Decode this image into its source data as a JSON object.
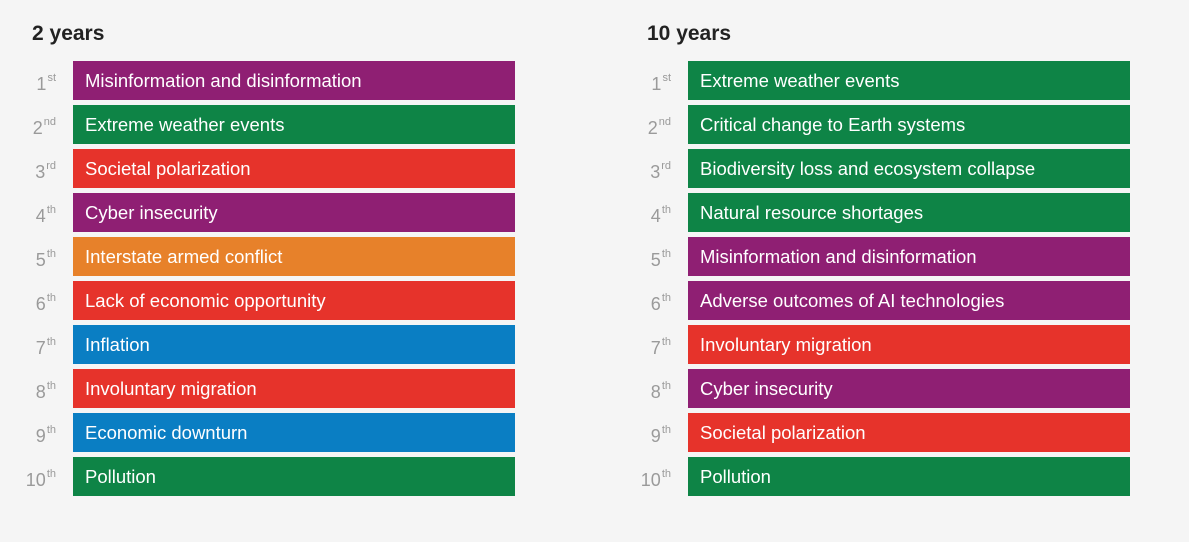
{
  "panels": [
    {
      "title": "2 years",
      "items": [
        {
          "rank": 1,
          "suffix": "st",
          "label": "Misinformation and disinformation",
          "color": "#8f1f73"
        },
        {
          "rank": 2,
          "suffix": "nd",
          "label": "Extreme weather events",
          "color": "#0e8446"
        },
        {
          "rank": 3,
          "suffix": "rd",
          "label": "Societal polarization",
          "color": "#e6332b"
        },
        {
          "rank": 4,
          "suffix": "th",
          "label": "Cyber insecurity",
          "color": "#8f1f73"
        },
        {
          "rank": 5,
          "suffix": "th",
          "label": "Interstate armed conflict",
          "color": "#e7812a"
        },
        {
          "rank": 6,
          "suffix": "th",
          "label": "Lack of economic opportunity",
          "color": "#e6332b"
        },
        {
          "rank": 7,
          "suffix": "th",
          "label": "Inflation",
          "color": "#0a7ec3"
        },
        {
          "rank": 8,
          "suffix": "th",
          "label": "Involuntary migration",
          "color": "#e6332b"
        },
        {
          "rank": 9,
          "suffix": "th",
          "label": "Economic downturn",
          "color": "#0a7ec3"
        },
        {
          "rank": 10,
          "suffix": "th",
          "label": "Pollution",
          "color": "#0e8446"
        }
      ]
    },
    {
      "title": "10 years",
      "items": [
        {
          "rank": 1,
          "suffix": "st",
          "label": "Extreme weather events",
          "color": "#0e8446"
        },
        {
          "rank": 2,
          "suffix": "nd",
          "label": "Critical change to Earth systems",
          "color": "#0e8446"
        },
        {
          "rank": 3,
          "suffix": "rd",
          "label": "Biodiversity loss and ecosystem collapse",
          "color": "#0e8446"
        },
        {
          "rank": 4,
          "suffix": "th",
          "label": "Natural resource shortages",
          "color": "#0e8446"
        },
        {
          "rank": 5,
          "suffix": "th",
          "label": "Misinformation and disinformation",
          "color": "#8f1f73"
        },
        {
          "rank": 6,
          "suffix": "th",
          "label": "Adverse outcomes of AI technologies",
          "color": "#8f1f73"
        },
        {
          "rank": 7,
          "suffix": "th",
          "label": "Involuntary migration",
          "color": "#e6332b"
        },
        {
          "rank": 8,
          "suffix": "th",
          "label": "Cyber insecurity",
          "color": "#8f1f73"
        },
        {
          "rank": 9,
          "suffix": "th",
          "label": "Societal polarization",
          "color": "#e6332b"
        },
        {
          "rank": 10,
          "suffix": "th",
          "label": "Pollution",
          "color": "#0e8446"
        }
      ]
    }
  ]
}
